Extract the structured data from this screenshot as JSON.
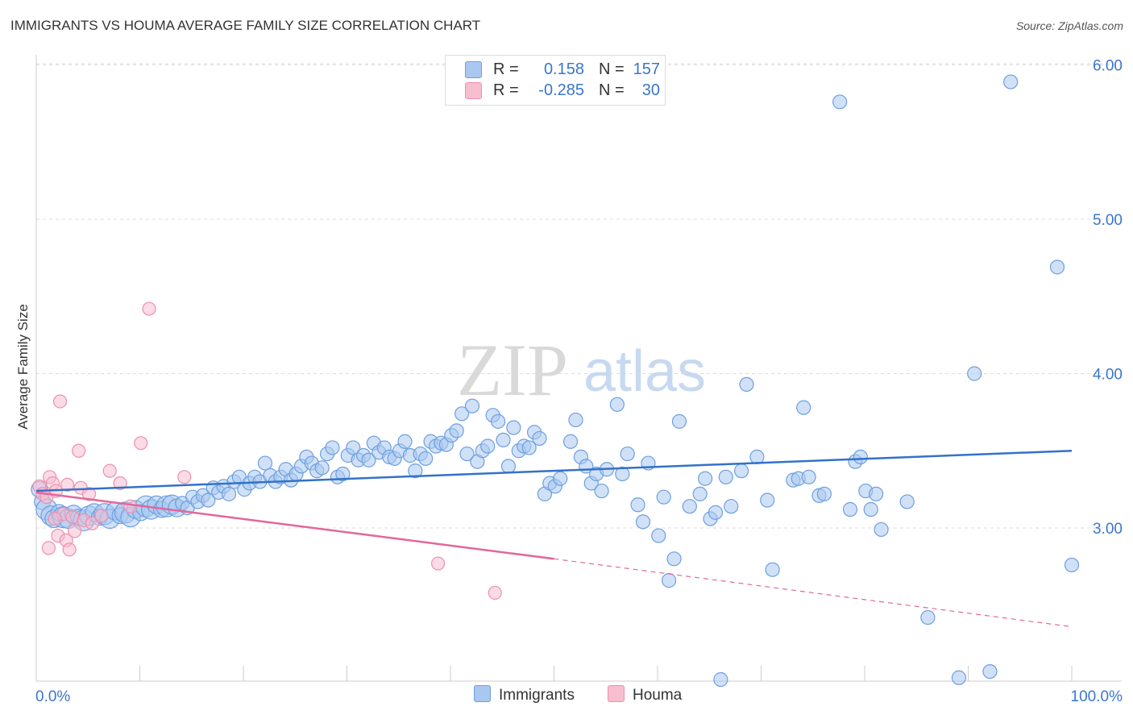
{
  "title": "IMMIGRANTS VS HOUMA AVERAGE FAMILY SIZE CORRELATION CHART",
  "source": "Source: ZipAtlas.com",
  "watermark": {
    "zip": "ZIP",
    "atlas": "atlas"
  },
  "legend": {
    "rows": [
      {
        "r_label": "R =",
        "r_value": "0.158",
        "n_label": "N =",
        "n_value": "157"
      },
      {
        "r_label": "R =",
        "r_value": "-0.285",
        "n_label": "N =",
        "n_value": "30"
      }
    ]
  },
  "bottom_legend": {
    "immigrants": "Immigrants",
    "houma": "Houma"
  },
  "colors": {
    "immigrants_fill": "#a9c8f0",
    "immigrants_stroke": "#6d9fdf",
    "immigrants_line": "#3372c9",
    "houma_fill": "#f7bed0",
    "houma_stroke": "#ee8fae",
    "houma_line": "#e2679a",
    "grid": "#dddddd",
    "axis_label": "#3a76cc"
  },
  "chart_data": {
    "type": "scatter",
    "title": "IMMIGRANTS VS HOUMA AVERAGE FAMILY SIZE CORRELATION CHART",
    "xlabel": "",
    "ylabel": "Average Family Size",
    "xlim": [
      0,
      100
    ],
    "ylim": [
      2.0,
      6.1
    ],
    "x_tick_labels": [
      "0.0%",
      "100.0%"
    ],
    "y_ticks": [
      3.0,
      4.0,
      5.0,
      6.0
    ],
    "y_tick_labels": [
      "3.00",
      "4.00",
      "5.00",
      "6.00"
    ],
    "grid": true,
    "legend_position": "top-center",
    "series": [
      {
        "name": "Immigrants",
        "r": 0.158,
        "n": 157,
        "trend": {
          "x": [
            0,
            100
          ],
          "y": [
            3.24,
            3.5
          ]
        },
        "points": [
          [
            0.6,
            3.17
          ],
          [
            1.0,
            3.12
          ],
          [
            1.4,
            3.08
          ],
          [
            1.7,
            3.06
          ],
          [
            2.2,
            3.1
          ],
          [
            2.6,
            3.07
          ],
          [
            3.1,
            3.06
          ],
          [
            3.6,
            3.09
          ],
          [
            4.1,
            3.07
          ],
          [
            4.6,
            3.05
          ],
          [
            5.1,
            3.08
          ],
          [
            5.6,
            3.1
          ],
          [
            6.1,
            3.07
          ],
          [
            6.6,
            3.09
          ],
          [
            7.1,
            3.06
          ],
          [
            7.6,
            3.11
          ],
          [
            8.1,
            3.08
          ],
          [
            8.6,
            3.1
          ],
          [
            9.1,
            3.07
          ],
          [
            9.6,
            3.12
          ],
          [
            10.1,
            3.1
          ],
          [
            10.6,
            3.14
          ],
          [
            11.1,
            3.12
          ],
          [
            11.6,
            3.15
          ],
          [
            12.1,
            3.12
          ],
          [
            12.6,
            3.14
          ],
          [
            13.1,
            3.15
          ],
          [
            13.6,
            3.13
          ],
          [
            14.1,
            3.16
          ],
          [
            14.6,
            3.13
          ],
          [
            15.1,
            3.2
          ],
          [
            15.6,
            3.17
          ],
          [
            16.1,
            3.21
          ],
          [
            16.6,
            3.18
          ],
          [
            17.1,
            3.26
          ],
          [
            17.6,
            3.23
          ],
          [
            18.1,
            3.27
          ],
          [
            18.6,
            3.22
          ],
          [
            19.1,
            3.3
          ],
          [
            19.6,
            3.33
          ],
          [
            20.1,
            3.25
          ],
          [
            20.6,
            3.29
          ],
          [
            21.1,
            3.33
          ],
          [
            21.6,
            3.3
          ],
          [
            22.1,
            3.42
          ],
          [
            22.6,
            3.34
          ],
          [
            23.1,
            3.3
          ],
          [
            23.6,
            3.33
          ],
          [
            24.1,
            3.38
          ],
          [
            24.6,
            3.31
          ],
          [
            25.1,
            3.35
          ],
          [
            25.6,
            3.4
          ],
          [
            26.1,
            3.46
          ],
          [
            26.6,
            3.42
          ],
          [
            27.1,
            3.37
          ],
          [
            27.6,
            3.39
          ],
          [
            28.1,
            3.48
          ],
          [
            28.6,
            3.52
          ],
          [
            29.1,
            3.33
          ],
          [
            29.6,
            3.35
          ],
          [
            30.1,
            3.47
          ],
          [
            30.6,
            3.52
          ],
          [
            31.1,
            3.44
          ],
          [
            31.6,
            3.47
          ],
          [
            32.1,
            3.44
          ],
          [
            32.6,
            3.55
          ],
          [
            33.1,
            3.49
          ],
          [
            33.6,
            3.52
          ],
          [
            34.1,
            3.46
          ],
          [
            34.6,
            3.45
          ],
          [
            35.1,
            3.5
          ],
          [
            35.6,
            3.56
          ],
          [
            36.1,
            3.47
          ],
          [
            36.6,
            3.37
          ],
          [
            37.1,
            3.48
          ],
          [
            37.6,
            3.45
          ],
          [
            38.1,
            3.56
          ],
          [
            38.6,
            3.53
          ],
          [
            39.1,
            3.55
          ],
          [
            39.6,
            3.54
          ],
          [
            40.1,
            3.6
          ],
          [
            40.6,
            3.63
          ],
          [
            41.1,
            3.74
          ],
          [
            41.6,
            3.48
          ],
          [
            42.1,
            3.79
          ],
          [
            42.6,
            3.43
          ],
          [
            43.1,
            3.5
          ],
          [
            43.6,
            3.53
          ],
          [
            44.1,
            3.73
          ],
          [
            44.6,
            3.69
          ],
          [
            45.1,
            3.57
          ],
          [
            45.6,
            3.4
          ],
          [
            46.1,
            3.65
          ],
          [
            46.6,
            3.5
          ],
          [
            47.1,
            3.53
          ],
          [
            47.6,
            3.52
          ],
          [
            48.1,
            3.62
          ],
          [
            48.6,
            3.58
          ],
          [
            49.1,
            3.22
          ],
          [
            49.6,
            3.29
          ],
          [
            50.1,
            3.27
          ],
          [
            50.6,
            3.32
          ],
          [
            51.6,
            3.56
          ],
          [
            52.1,
            3.7
          ],
          [
            52.6,
            3.46
          ],
          [
            53.1,
            3.4
          ],
          [
            53.6,
            3.29
          ],
          [
            54.1,
            3.35
          ],
          [
            54.6,
            3.24
          ],
          [
            55.1,
            3.38
          ],
          [
            56.1,
            3.8
          ],
          [
            56.6,
            3.35
          ],
          [
            57.1,
            3.48
          ],
          [
            58.1,
            3.15
          ],
          [
            58.6,
            3.04
          ],
          [
            59.1,
            3.42
          ],
          [
            60.1,
            2.95
          ],
          [
            60.6,
            3.2
          ],
          [
            61.1,
            2.66
          ],
          [
            61.6,
            2.8
          ],
          [
            62.1,
            3.69
          ],
          [
            63.1,
            3.14
          ],
          [
            64.1,
            3.22
          ],
          [
            64.6,
            3.32
          ],
          [
            65.1,
            3.06
          ],
          [
            65.6,
            3.1
          ],
          [
            66.6,
            3.33
          ],
          [
            67.1,
            3.14
          ],
          [
            68.1,
            3.37
          ],
          [
            68.6,
            3.93
          ],
          [
            69.6,
            3.46
          ],
          [
            70.6,
            3.18
          ],
          [
            71.1,
            2.73
          ],
          [
            73.1,
            3.31
          ],
          [
            73.6,
            3.32
          ],
          [
            74.1,
            3.78
          ],
          [
            74.6,
            3.33
          ],
          [
            75.6,
            3.21
          ],
          [
            76.1,
            3.22
          ],
          [
            77.6,
            5.76
          ],
          [
            78.6,
            3.12
          ],
          [
            79.1,
            3.43
          ],
          [
            79.6,
            3.46
          ],
          [
            80.1,
            3.24
          ],
          [
            80.6,
            3.12
          ],
          [
            81.1,
            3.22
          ],
          [
            81.6,
            2.99
          ],
          [
            84.1,
            3.17
          ],
          [
            66.1,
            2.01
          ],
          [
            86.1,
            2.42
          ],
          [
            89.1,
            2.03
          ],
          [
            90.6,
            4.0
          ],
          [
            92.1,
            2.07
          ],
          [
            94.1,
            5.89
          ],
          [
            98.6,
            4.69
          ],
          [
            100.0,
            2.76
          ],
          [
            0.3,
            3.25
          ]
        ]
      },
      {
        "name": "Houma",
        "r": -0.285,
        "n": 30,
        "trend": {
          "x": [
            0,
            50
          ],
          "y": [
            3.23,
            2.8
          ]
        },
        "trend_extension": {
          "x": [
            50,
            100
          ],
          "y": [
            2.8,
            2.36
          ]
        },
        "points": [
          [
            0.3,
            3.27
          ],
          [
            0.6,
            3.22
          ],
          [
            1.0,
            3.2
          ],
          [
            1.3,
            3.33
          ],
          [
            1.6,
            3.29
          ],
          [
            1.9,
            3.24
          ],
          [
            2.1,
            2.95
          ],
          [
            2.3,
            3.82
          ],
          [
            2.6,
            3.09
          ],
          [
            2.9,
            2.92
          ],
          [
            3.2,
            2.86
          ],
          [
            3.5,
            3.07
          ],
          [
            3.7,
            2.98
          ],
          [
            4.1,
            3.5
          ],
          [
            4.3,
            3.26
          ],
          [
            4.6,
            3.05
          ],
          [
            5.1,
            3.22
          ],
          [
            5.4,
            3.03
          ],
          [
            6.3,
            3.08
          ],
          [
            7.1,
            3.37
          ],
          [
            8.1,
            3.29
          ],
          [
            9.1,
            3.14
          ],
          [
            10.1,
            3.55
          ],
          [
            10.9,
            4.42
          ],
          [
            14.3,
            3.33
          ],
          [
            1.2,
            2.87
          ],
          [
            1.8,
            3.06
          ],
          [
            3.0,
            3.28
          ],
          [
            38.8,
            2.77
          ],
          [
            44.3,
            2.58
          ]
        ]
      }
    ]
  }
}
